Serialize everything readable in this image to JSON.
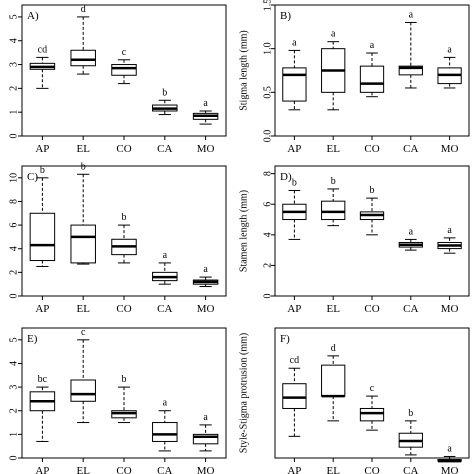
{
  "chart_data": [
    {
      "type": "box",
      "panel_label": "A)",
      "ylabel": "",
      "ylim": [
        0,
        5.5
      ],
      "yticks": [
        0,
        1,
        2,
        3,
        4,
        5
      ],
      "categories": [
        "AP",
        "EL",
        "CO",
        "CA",
        "MO"
      ],
      "boxes": [
        {
          "min": 2.0,
          "q1": 2.8,
          "median": 2.9,
          "q3": 3.05,
          "max": 3.3
        },
        {
          "min": 2.6,
          "q1": 2.95,
          "median": 3.2,
          "q3": 3.6,
          "max": 5.0
        },
        {
          "min": 2.2,
          "q1": 2.55,
          "median": 2.85,
          "q3": 3.0,
          "max": 3.2
        },
        {
          "min": 0.9,
          "q1": 1.05,
          "median": 1.15,
          "q3": 1.3,
          "max": 1.5
        },
        {
          "min": 0.5,
          "q1": 0.7,
          "median": 0.85,
          "q3": 0.95,
          "max": 1.05
        }
      ],
      "letters": [
        "cd",
        "d",
        "c",
        "b",
        "a"
      ]
    },
    {
      "type": "box",
      "panel_label": "B)",
      "ylabel": "Stigma length (mm)",
      "ylim": [
        0,
        1.5
      ],
      "yticks": [
        "0.0",
        "0.5",
        "1.0",
        "1.5"
      ],
      "categories": [
        "AP",
        "EL",
        "CO",
        "CA",
        "MO"
      ],
      "boxes": [
        {
          "min": 0.3,
          "q1": 0.4,
          "median": 0.7,
          "q3": 0.78,
          "max": 0.98
        },
        {
          "min": 0.3,
          "q1": 0.5,
          "median": 0.75,
          "q3": 1.0,
          "max": 1.08
        },
        {
          "min": 0.45,
          "q1": 0.5,
          "median": 0.6,
          "q3": 0.8,
          "max": 0.95
        },
        {
          "min": 0.55,
          "q1": 0.7,
          "median": 0.78,
          "q3": 0.8,
          "max": 1.3
        },
        {
          "min": 0.55,
          "q1": 0.6,
          "median": 0.7,
          "q3": 0.78,
          "max": 0.9
        }
      ],
      "letters": [
        "a",
        "a",
        "a",
        "a",
        "a"
      ]
    },
    {
      "type": "box",
      "panel_label": "C)",
      "ylabel": "",
      "ylim": [
        0,
        11
      ],
      "yticks": [
        0,
        2,
        4,
        6,
        8,
        10
      ],
      "categories": [
        "AP",
        "EL",
        "CO",
        "CA",
        "MO"
      ],
      "boxes": [
        {
          "min": 2.5,
          "q1": 3.0,
          "median": 4.3,
          "q3": 7.0,
          "max": 10.0
        },
        {
          "min": 2.7,
          "q1": 2.8,
          "median": 5.0,
          "q3": 6.0,
          "max": 10.3
        },
        {
          "min": 2.8,
          "q1": 3.5,
          "median": 4.2,
          "q3": 4.8,
          "max": 6.0
        },
        {
          "min": 1.0,
          "q1": 1.3,
          "median": 1.6,
          "q3": 2.0,
          "max": 2.8
        },
        {
          "min": 0.8,
          "q1": 1.0,
          "median": 1.2,
          "q3": 1.35,
          "max": 1.6
        }
      ],
      "letters": [
        "b",
        "b",
        "b",
        "a",
        "a"
      ]
    },
    {
      "type": "box",
      "panel_label": "D)",
      "ylabel": "Stamen length (mm)",
      "ylim": [
        0,
        8.5
      ],
      "yticks": [
        0,
        2,
        4,
        6,
        8
      ],
      "categories": [
        "AP",
        "EL",
        "CO",
        "CA",
        "MO"
      ],
      "boxes": [
        {
          "min": 3.7,
          "q1": 5.0,
          "median": 5.5,
          "q3": 6.0,
          "max": 6.9
        },
        {
          "min": 4.6,
          "q1": 5.0,
          "median": 5.5,
          "q3": 6.2,
          "max": 7.0
        },
        {
          "min": 4.0,
          "q1": 5.0,
          "median": 5.3,
          "q3": 5.5,
          "max": 6.4
        },
        {
          "min": 3.0,
          "q1": 3.2,
          "median": 3.35,
          "q3": 3.5,
          "max": 3.7
        },
        {
          "min": 2.8,
          "q1": 3.1,
          "median": 3.3,
          "q3": 3.5,
          "max": 3.8
        }
      ],
      "letters": [
        "b",
        "b",
        "b",
        "a",
        "a"
      ]
    },
    {
      "type": "box",
      "panel_label": "E)",
      "ylabel": "",
      "ylim": [
        0,
        5.5
      ],
      "yticks": [
        0,
        1,
        2,
        3,
        4,
        5
      ],
      "categories": [
        "AP",
        "EL",
        "CO",
        "CA",
        "MO"
      ],
      "boxes": [
        {
          "min": 0.7,
          "q1": 2.0,
          "median": 2.4,
          "q3": 2.8,
          "max": 3.0
        },
        {
          "min": 1.5,
          "q1": 2.4,
          "median": 2.7,
          "q3": 3.3,
          "max": 5.0
        },
        {
          "min": 1.5,
          "q1": 1.7,
          "median": 1.9,
          "q3": 2.0,
          "max": 3.0
        },
        {
          "min": 0.3,
          "q1": 0.7,
          "median": 1.0,
          "q3": 1.5,
          "max": 2.0
        },
        {
          "min": 0.3,
          "q1": 0.6,
          "median": 0.9,
          "q3": 1.0,
          "max": 1.4
        }
      ],
      "letters": [
        "bc",
        "c",
        "b",
        "a",
        "a"
      ]
    },
    {
      "type": "box",
      "panel_label": "F)",
      "ylabel": "Style-Stigma protrusion (mm)",
      "ylim": [
        0,
        4.2
      ],
      "yticks": [],
      "categories": [
        "AP",
        "EL",
        "CO",
        "CA",
        "MO"
      ],
      "boxes": [
        {
          "min": 0.7,
          "q1": 1.6,
          "median": 1.95,
          "q3": 2.4,
          "max": 2.9
        },
        {
          "min": 1.2,
          "q1": 2.0,
          "median": 2.0,
          "q3": 3.0,
          "max": 3.3
        },
        {
          "min": 0.9,
          "q1": 1.2,
          "median": 1.45,
          "q3": 1.6,
          "max": 2.0
        },
        {
          "min": 0.1,
          "q1": 0.35,
          "median": 0.55,
          "q3": 0.8,
          "max": 1.2
        },
        {
          "min": -0.1,
          "q1": -0.1,
          "median": -0.1,
          "q3": -0.05,
          "max": 0.05
        }
      ],
      "letters": [
        "cd",
        "d",
        "c",
        "b",
        "a"
      ]
    }
  ]
}
